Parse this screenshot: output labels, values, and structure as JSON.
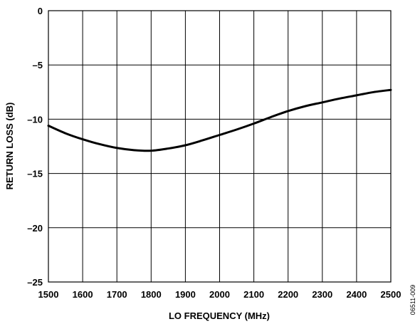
{
  "chart_data": {
    "type": "line",
    "xlabel": "LO FREQUENCY (MHz)",
    "ylabel": "RETURN LOSS (dB)",
    "xlim": [
      1500,
      2500
    ],
    "ylim": [
      -25,
      0
    ],
    "xticks": [
      1500,
      1600,
      1700,
      1800,
      1900,
      2000,
      2100,
      2200,
      2300,
      2400,
      2500
    ],
    "yticks": [
      0,
      -5,
      -10,
      -15,
      -20,
      -25
    ],
    "ytick_labels": [
      "0",
      "–5",
      "–10",
      "–15",
      "–20",
      "–25"
    ],
    "grid": true,
    "series": [
      {
        "x": [
          1500,
          1550,
          1600,
          1650,
          1700,
          1750,
          1800,
          1850,
          1900,
          1950,
          2000,
          2050,
          2100,
          2150,
          2200,
          2250,
          2300,
          2350,
          2400,
          2450,
          2500
        ],
        "y": [
          -10.6,
          -11.3,
          -11.85,
          -12.3,
          -12.65,
          -12.85,
          -12.9,
          -12.7,
          -12.4,
          -11.95,
          -11.45,
          -10.95,
          -10.4,
          -9.8,
          -9.25,
          -8.8,
          -8.45,
          -8.1,
          -7.8,
          -7.5,
          -7.3
        ],
        "color": "#000000"
      }
    ],
    "figure_code": "06511-009"
  }
}
